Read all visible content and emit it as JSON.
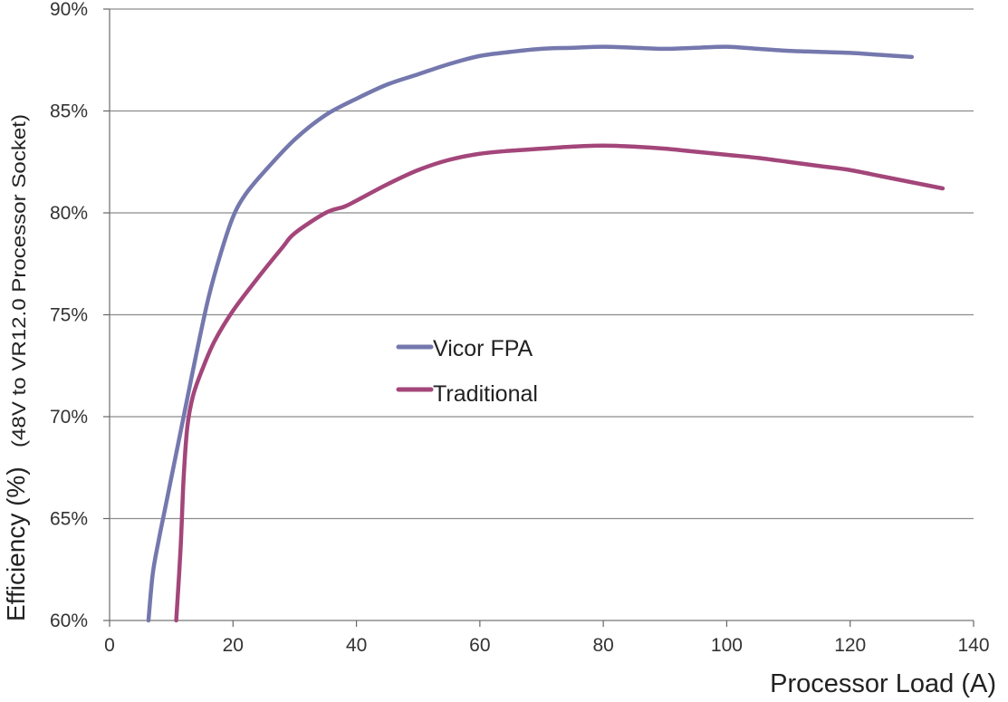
{
  "chart_data": {
    "type": "line",
    "xlabel": "Processor Load (A)",
    "ylabel": "Efficiency (%)",
    "ylabel_sub": "(48V to VR12.0 Processor Socket)",
    "xlim": [
      0,
      140
    ],
    "ylim": [
      60,
      90
    ],
    "x_ticks": [
      0,
      20,
      40,
      60,
      80,
      100,
      120,
      140
    ],
    "y_ticks": [
      60,
      65,
      70,
      75,
      80,
      85,
      90
    ],
    "x_tick_labels": [
      "0",
      "20",
      "40",
      "60",
      "80",
      "100",
      "120",
      "140"
    ],
    "y_tick_labels": [
      "60%",
      "65%",
      "70%",
      "75%",
      "80%",
      "85%",
      "90%"
    ],
    "grid": true,
    "legend_position": "center",
    "series": [
      {
        "name": "Vicor FPA",
        "color": "#7478ad",
        "points": [
          [
            6.3,
            60.0
          ],
          [
            7,
            62.3
          ],
          [
            8,
            64.0
          ],
          [
            9,
            65.5
          ],
          [
            10,
            67.0
          ],
          [
            11,
            68.5
          ],
          [
            12,
            70.0
          ],
          [
            14,
            73.0
          ],
          [
            16,
            75.8
          ],
          [
            18,
            78.0
          ],
          [
            20,
            79.8
          ],
          [
            22,
            80.9
          ],
          [
            25,
            82.0
          ],
          [
            30,
            83.6
          ],
          [
            35,
            84.8
          ],
          [
            40,
            85.6
          ],
          [
            45,
            86.3
          ],
          [
            50,
            86.8
          ],
          [
            55,
            87.3
          ],
          [
            60,
            87.7
          ],
          [
            65,
            87.9
          ],
          [
            70,
            88.05
          ],
          [
            75,
            88.1
          ],
          [
            80,
            88.15
          ],
          [
            85,
            88.1
          ],
          [
            90,
            88.05
          ],
          [
            95,
            88.1
          ],
          [
            100,
            88.15
          ],
          [
            105,
            88.05
          ],
          [
            110,
            87.95
          ],
          [
            115,
            87.9
          ],
          [
            120,
            87.85
          ],
          [
            125,
            87.75
          ],
          [
            130,
            87.65
          ]
        ]
      },
      {
        "name": "Traditional",
        "color": "#a3467a",
        "points": [
          [
            10.8,
            60.0
          ],
          [
            11.5,
            63.5
          ],
          [
            12,
            67.0
          ],
          [
            12.6,
            69.5
          ],
          [
            13.5,
            71.0
          ],
          [
            15,
            72.3
          ],
          [
            17,
            73.7
          ],
          [
            20,
            75.2
          ],
          [
            24,
            76.8
          ],
          [
            28,
            78.3
          ],
          [
            30,
            79.0
          ],
          [
            35,
            80.0
          ],
          [
            38,
            80.3
          ],
          [
            40,
            80.6
          ],
          [
            45,
            81.4
          ],
          [
            50,
            82.1
          ],
          [
            55,
            82.6
          ],
          [
            60,
            82.9
          ],
          [
            65,
            83.05
          ],
          [
            70,
            83.15
          ],
          [
            75,
            83.25
          ],
          [
            80,
            83.3
          ],
          [
            85,
            83.25
          ],
          [
            90,
            83.15
          ],
          [
            95,
            83.0
          ],
          [
            100,
            82.85
          ],
          [
            105,
            82.7
          ],
          [
            110,
            82.5
          ],
          [
            115,
            82.3
          ],
          [
            120,
            82.1
          ],
          [
            125,
            81.8
          ],
          [
            130,
            81.5
          ],
          [
            135,
            81.2
          ]
        ]
      }
    ]
  }
}
